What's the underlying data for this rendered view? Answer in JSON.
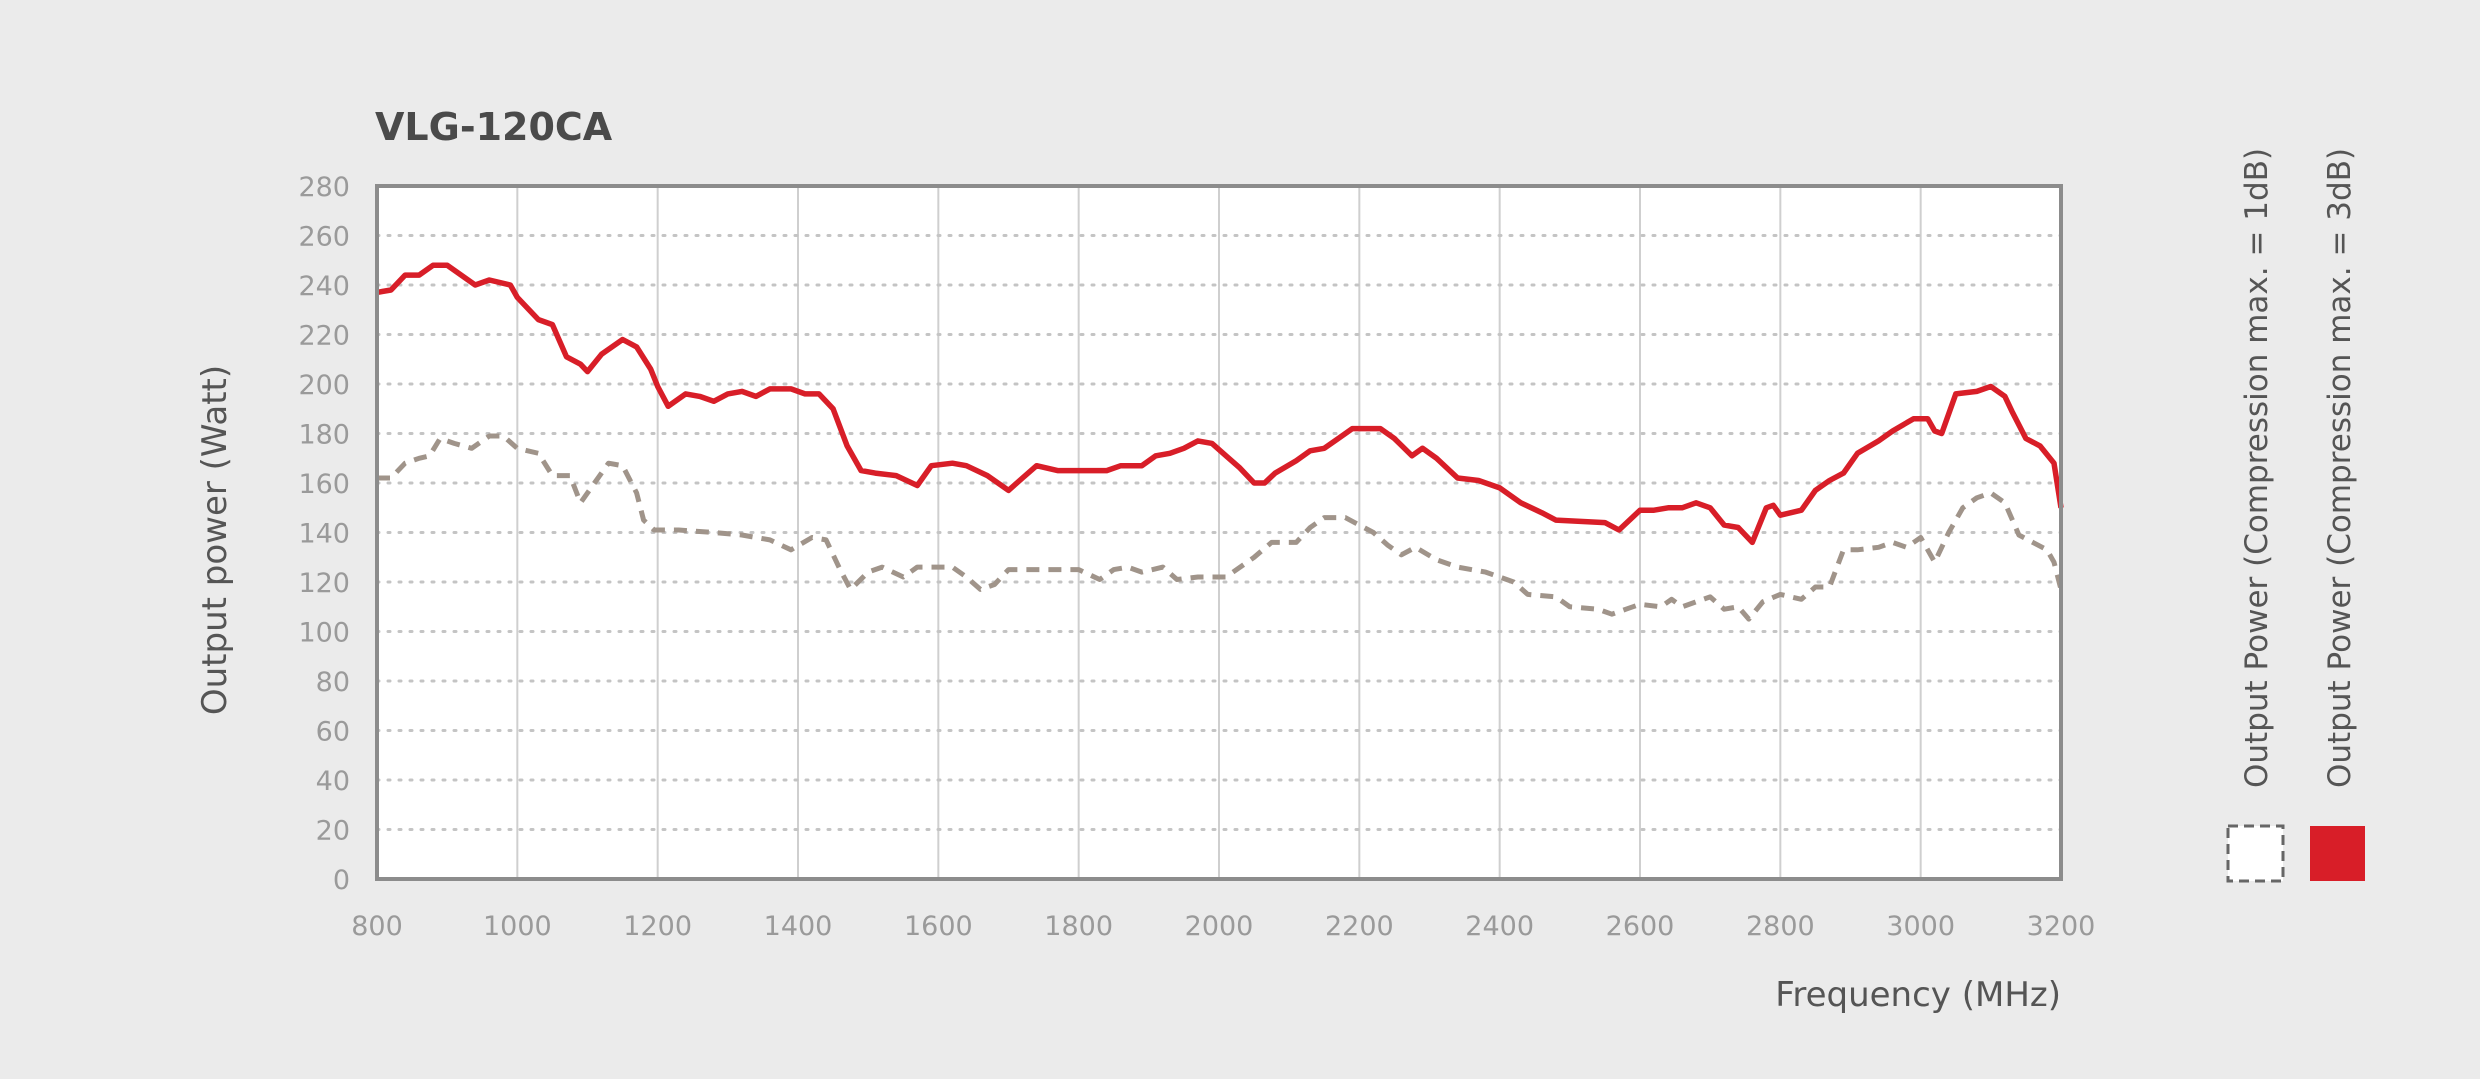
{
  "chart_data": {
    "type": "line",
    "title": "VLG-120CA",
    "xlabel": "Frequency (MHz)",
    "ylabel": "Output power (Watt)",
    "xlim": [
      800,
      3200
    ],
    "ylim": [
      0,
      280
    ],
    "x_ticks": [
      "800",
      "1000",
      "1200",
      "1400",
      "1600",
      "1800",
      "2000",
      "2200",
      "2400",
      "2600",
      "2800",
      "3000",
      "3200"
    ],
    "y_ticks": [
      "0",
      "20",
      "40",
      "60",
      "80",
      "100",
      "120",
      "140",
      "160",
      "180",
      "200",
      "220",
      "240",
      "260",
      "280"
    ],
    "x_tick_values": [
      800,
      1000,
      1200,
      1400,
      1600,
      1800,
      2000,
      2200,
      2400,
      2600,
      2800,
      3000,
      3200
    ],
    "y_tick_values": [
      0,
      20,
      40,
      60,
      80,
      100,
      120,
      140,
      160,
      180,
      200,
      220,
      240,
      260,
      280
    ],
    "grid": {
      "vertical": "solid",
      "horizontal": "dotted"
    },
    "legend_position": "right",
    "series": [
      {
        "name": "Output Power (Compression max. = 1dB)",
        "color": "#a0948a",
        "style": "dashed",
        "points": [
          [
            800,
            162
          ],
          [
            820,
            162
          ],
          [
            840,
            168
          ],
          [
            860,
            170
          ],
          [
            875,
            171
          ],
          [
            890,
            178
          ],
          [
            910,
            176
          ],
          [
            935,
            174
          ],
          [
            960,
            179
          ],
          [
            980,
            179
          ],
          [
            1000,
            174
          ],
          [
            1030,
            172
          ],
          [
            1050,
            163
          ],
          [
            1075,
            163
          ],
          [
            1090,
            152
          ],
          [
            1110,
            160
          ],
          [
            1130,
            168
          ],
          [
            1150,
            167
          ],
          [
            1170,
            156
          ],
          [
            1180,
            145
          ],
          [
            1195,
            141
          ],
          [
            1230,
            141
          ],
          [
            1280,
            140
          ],
          [
            1320,
            139
          ],
          [
            1360,
            137
          ],
          [
            1390,
            133
          ],
          [
            1420,
            138
          ],
          [
            1440,
            137
          ],
          [
            1460,
            125
          ],
          [
            1475,
            117
          ],
          [
            1500,
            124
          ],
          [
            1520,
            126
          ],
          [
            1550,
            122
          ],
          [
            1570,
            126
          ],
          [
            1600,
            126
          ],
          [
            1620,
            126
          ],
          [
            1640,
            122
          ],
          [
            1660,
            117
          ],
          [
            1680,
            119
          ],
          [
            1700,
            125
          ],
          [
            1800,
            125
          ],
          [
            1830,
            121
          ],
          [
            1850,
            125
          ],
          [
            1870,
            126
          ],
          [
            1890,
            124
          ],
          [
            1920,
            126
          ],
          [
            1940,
            121
          ],
          [
            1970,
            122
          ],
          [
            2010,
            122
          ],
          [
            2050,
            130
          ],
          [
            2075,
            136
          ],
          [
            2110,
            136
          ],
          [
            2130,
            142
          ],
          [
            2150,
            146
          ],
          [
            2180,
            146
          ],
          [
            2220,
            140
          ],
          [
            2240,
            135
          ],
          [
            2260,
            131
          ],
          [
            2280,
            134
          ],
          [
            2310,
            129
          ],
          [
            2340,
            126
          ],
          [
            2380,
            124
          ],
          [
            2420,
            120
          ],
          [
            2440,
            115
          ],
          [
            2480,
            114
          ],
          [
            2500,
            110
          ],
          [
            2540,
            109
          ],
          [
            2560,
            107
          ],
          [
            2580,
            109
          ],
          [
            2600,
            111
          ],
          [
            2630,
            110
          ],
          [
            2645,
            113
          ],
          [
            2660,
            110
          ],
          [
            2680,
            112
          ],
          [
            2700,
            114
          ],
          [
            2720,
            109
          ],
          [
            2740,
            110
          ],
          [
            2755,
            105
          ],
          [
            2775,
            112
          ],
          [
            2800,
            115
          ],
          [
            2830,
            113
          ],
          [
            2850,
            118
          ],
          [
            2870,
            118
          ],
          [
            2890,
            133
          ],
          [
            2910,
            133
          ],
          [
            2940,
            134
          ],
          [
            2960,
            136
          ],
          [
            2980,
            134
          ],
          [
            3000,
            138
          ],
          [
            3020,
            128
          ],
          [
            3040,
            140
          ],
          [
            3060,
            150
          ],
          [
            3080,
            154
          ],
          [
            3100,
            156
          ],
          [
            3120,
            152
          ],
          [
            3140,
            139
          ],
          [
            3160,
            136
          ],
          [
            3180,
            133
          ],
          [
            3190,
            128
          ],
          [
            3200,
            117
          ]
        ]
      },
      {
        "name": "Output Power (Compression max. = 3dB)",
        "color": "#d81e28",
        "style": "solid",
        "points": [
          [
            800,
            237
          ],
          [
            820,
            238
          ],
          [
            840,
            244
          ],
          [
            860,
            244
          ],
          [
            880,
            248
          ],
          [
            900,
            248
          ],
          [
            920,
            244
          ],
          [
            940,
            240
          ],
          [
            960,
            242
          ],
          [
            990,
            240
          ],
          [
            1000,
            235
          ],
          [
            1030,
            226
          ],
          [
            1050,
            224
          ],
          [
            1070,
            211
          ],
          [
            1090,
            208
          ],
          [
            1100,
            205
          ],
          [
            1120,
            212
          ],
          [
            1150,
            218
          ],
          [
            1170,
            215
          ],
          [
            1190,
            206
          ],
          [
            1200,
            199
          ],
          [
            1215,
            191
          ],
          [
            1240,
            196
          ],
          [
            1260,
            195
          ],
          [
            1280,
            193
          ],
          [
            1300,
            196
          ],
          [
            1320,
            197
          ],
          [
            1340,
            195
          ],
          [
            1360,
            198
          ],
          [
            1390,
            198
          ],
          [
            1410,
            196
          ],
          [
            1430,
            196
          ],
          [
            1450,
            190
          ],
          [
            1470,
            175
          ],
          [
            1490,
            165
          ],
          [
            1510,
            164
          ],
          [
            1540,
            163
          ],
          [
            1570,
            159
          ],
          [
            1590,
            167
          ],
          [
            1620,
            168
          ],
          [
            1640,
            167
          ],
          [
            1670,
            163
          ],
          [
            1700,
            157
          ],
          [
            1720,
            162
          ],
          [
            1740,
            167
          ],
          [
            1770,
            165
          ],
          [
            1840,
            165
          ],
          [
            1860,
            167
          ],
          [
            1890,
            167
          ],
          [
            1910,
            171
          ],
          [
            1930,
            172
          ],
          [
            1950,
            174
          ],
          [
            1970,
            177
          ],
          [
            1990,
            176
          ],
          [
            2010,
            171
          ],
          [
            2030,
            166
          ],
          [
            2050,
            160
          ],
          [
            2065,
            160
          ],
          [
            2080,
            164
          ],
          [
            2110,
            169
          ],
          [
            2130,
            173
          ],
          [
            2150,
            174
          ],
          [
            2170,
            178
          ],
          [
            2190,
            182
          ],
          [
            2230,
            182
          ],
          [
            2250,
            178
          ],
          [
            2275,
            171
          ],
          [
            2290,
            174
          ],
          [
            2310,
            170
          ],
          [
            2340,
            162
          ],
          [
            2370,
            161
          ],
          [
            2400,
            158
          ],
          [
            2430,
            152
          ],
          [
            2460,
            148
          ],
          [
            2480,
            145
          ],
          [
            2550,
            144
          ],
          [
            2570,
            141
          ],
          [
            2600,
            149
          ],
          [
            2620,
            149
          ],
          [
            2640,
            150
          ],
          [
            2660,
            150
          ],
          [
            2680,
            152
          ],
          [
            2700,
            150
          ],
          [
            2720,
            143
          ],
          [
            2740,
            142
          ],
          [
            2760,
            136
          ],
          [
            2780,
            150
          ],
          [
            2790,
            151
          ],
          [
            2800,
            147
          ],
          [
            2830,
            149
          ],
          [
            2850,
            157
          ],
          [
            2870,
            161
          ],
          [
            2890,
            164
          ],
          [
            2910,
            172
          ],
          [
            2940,
            177
          ],
          [
            2960,
            181
          ],
          [
            2990,
            186
          ],
          [
            3010,
            186
          ],
          [
            3020,
            181
          ],
          [
            3030,
            180
          ],
          [
            3050,
            196
          ],
          [
            3080,
            197
          ],
          [
            3100,
            199
          ],
          [
            3120,
            195
          ],
          [
            3130,
            189
          ],
          [
            3150,
            178
          ],
          [
            3170,
            175
          ],
          [
            3190,
            168
          ],
          [
            3200,
            150
          ]
        ]
      }
    ]
  }
}
